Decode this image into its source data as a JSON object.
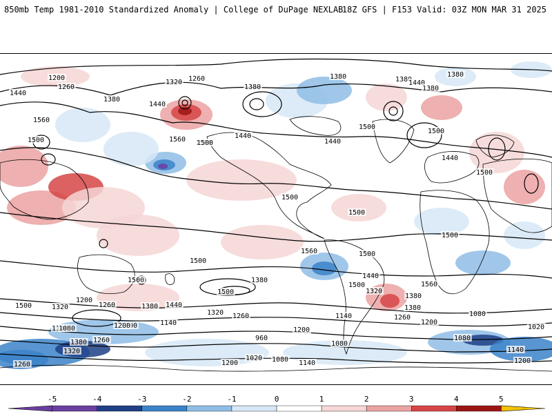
{
  "header": {
    "title": "850mb Temp 1981-2010 Standardized Anomaly | College of DuPage NEXLAB",
    "run_info": "18Z GFS | F153 Valid: 03Z MON MAR 31 2025"
  },
  "colors": {
    "neg5": "#6a3fa0",
    "neg4": "#1f3f86",
    "neg3": "#3b83c9",
    "neg2": "#8fbde6",
    "neg1": "#d6e7f6",
    "zero": "#ffffff",
    "pos1": "#f6d6d6",
    "pos2": "#eba2a2",
    "pos3": "#d64545",
    "pos4": "#9c1515",
    "pos5": "#6e0a0a",
    "over": "#f2c300",
    "contour": "#000000",
    "coast": "#000000"
  },
  "legend": {
    "ticks": [
      "-5",
      "-4",
      "-3",
      "-2",
      "-1",
      "0",
      "1",
      "2",
      "3",
      "4",
      "5"
    ]
  },
  "contour_labels": [
    {
      "text": "1320"
    },
    {
      "text": "1200"
    },
    {
      "text": "1260"
    },
    {
      "text": "1440"
    },
    {
      "text": "1380"
    },
    {
      "text": "1320"
    },
    {
      "text": "1260"
    },
    {
      "text": "1380"
    },
    {
      "text": "1440"
    },
    {
      "text": "1380"
    },
    {
      "text": "1380"
    },
    {
      "text": "1440"
    },
    {
      "text": "1380"
    },
    {
      "text": "1380"
    },
    {
      "text": "1560"
    },
    {
      "text": "1500"
    },
    {
      "text": "1440"
    },
    {
      "text": "1500"
    },
    {
      "text": "1560"
    },
    {
      "text": "1500"
    },
    {
      "text": "1440"
    },
    {
      "text": "1500"
    },
    {
      "text": "1500"
    },
    {
      "text": "1440"
    },
    {
      "text": "1500"
    },
    {
      "text": "1500"
    },
    {
      "text": "1500"
    },
    {
      "text": "1500"
    },
    {
      "text": "1500"
    },
    {
      "text": "1560"
    },
    {
      "text": "1500"
    },
    {
      "text": "1500"
    },
    {
      "text": "1500"
    },
    {
      "text": "1380"
    },
    {
      "text": "1500"
    },
    {
      "text": "1440"
    },
    {
      "text": "1320"
    },
    {
      "text": "1560"
    },
    {
      "text": "1500"
    },
    {
      "text": "1320"
    },
    {
      "text": "1260"
    },
    {
      "text": "1200"
    },
    {
      "text": "1380"
    },
    {
      "text": "1440"
    },
    {
      "text": "1320"
    },
    {
      "text": "1260"
    },
    {
      "text": "1140"
    },
    {
      "text": "1200"
    },
    {
      "text": "1140"
    },
    {
      "text": "1080"
    },
    {
      "text": "1140"
    },
    {
      "text": "1080"
    },
    {
      "text": "1200"
    },
    {
      "text": "1260"
    },
    {
      "text": "1380"
    },
    {
      "text": "1320"
    },
    {
      "text": "1260"
    },
    {
      "text": "960"
    },
    {
      "text": "1020"
    },
    {
      "text": "1080"
    },
    {
      "text": "1140"
    },
    {
      "text": "1200"
    },
    {
      "text": "1080"
    },
    {
      "text": "1020"
    },
    {
      "text": "1080"
    },
    {
      "text": "1140"
    },
    {
      "text": "1200"
    },
    {
      "text": "1380"
    },
    {
      "text": "1260"
    },
    {
      "text": "1200"
    },
    {
      "text": "1380"
    },
    {
      "text": "1200"
    }
  ]
}
